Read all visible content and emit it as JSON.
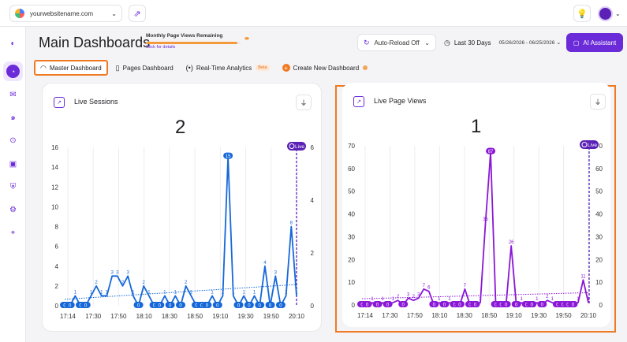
{
  "topbar": {
    "site": "yourwebsitename.com",
    "site_chevron": "⌄",
    "external_icon": "external-link-icon",
    "bulb_icon": "lightbulb-icon",
    "avatar_color": "#5b21b6"
  },
  "rail": {
    "icons": [
      "toggle-icon",
      "dashboard-icon",
      "inbox-icon",
      "spiral-icon",
      "focus-icon",
      "chat-icon",
      "shield-icon",
      "gear-icon",
      "pin-icon"
    ]
  },
  "header": {
    "title": "Main Dashboards",
    "quota_label": "Monthly Page Views Remaining",
    "quota_link": "Click for details",
    "quota_fraction": 0.97,
    "reload_label": "Auto-Reload Off",
    "range_label": "Last 30 Days",
    "range_dates": "05/26/2026 - 06/25/2026",
    "ai_label": "AI Assistant",
    "accent": "#6b2bd9"
  },
  "tabs": [
    {
      "label": "Master Dashboard",
      "active": true
    },
    {
      "label": "Pages Dashboard",
      "active": false
    },
    {
      "label": "Real-Time Analytics",
      "active": false,
      "badge": "Beta"
    },
    {
      "label": "Create New Dashboard",
      "active": false
    }
  ],
  "cards": {
    "sessions": {
      "title": "Live Sessions",
      "value": "2"
    },
    "pageviews": {
      "title": "Live Page Views",
      "value": "1"
    }
  },
  "chart_data": [
    {
      "type": "line",
      "title": "Live Sessions",
      "color": "#1668d8",
      "x_ticks": [
        "17:14",
        "17:30",
        "17:50",
        "18:10",
        "18:30",
        "18:50",
        "19:10",
        "19:30",
        "19:50",
        "20:10"
      ],
      "ylim": [
        0,
        16
      ],
      "y_ticks": [
        0,
        2,
        4,
        6,
        8,
        10,
        12,
        14,
        16
      ],
      "right_y_ticks": [
        0,
        2,
        4,
        6
      ],
      "live_label": "Live",
      "values": [
        0,
        0,
        1,
        0,
        0,
        1,
        2,
        1,
        1,
        3,
        3,
        2,
        3,
        1,
        0,
        2,
        1,
        0,
        0,
        1,
        0,
        1,
        0,
        2,
        1,
        0,
        0,
        0,
        1,
        0,
        1,
        15,
        1,
        0,
        1,
        0,
        1,
        0,
        4,
        0,
        3,
        0,
        1,
        8,
        1
      ],
      "labels": [
        "0",
        "0",
        "1",
        "0",
        "0",
        "1",
        "2",
        "1",
        "1",
        "3",
        "3",
        "2",
        "3",
        "1",
        "0",
        "2",
        "1",
        "0",
        "0",
        "1",
        "0",
        "1",
        "0",
        "2",
        "1",
        "0",
        "0",
        "0",
        "1",
        "0",
        "1",
        "15",
        "1",
        "0",
        "1",
        "0",
        "1",
        "0",
        "4",
        "0",
        "3",
        "0",
        "1",
        "8",
        "1"
      ]
    },
    {
      "type": "line",
      "title": "Live Page Views",
      "color": "#8a17d6",
      "x_ticks": [
        "17:14",
        "17:30",
        "17:50",
        "18:10",
        "18:30",
        "18:50",
        "19:10",
        "19:30",
        "19:50",
        "20:10"
      ],
      "ylim": [
        0,
        70
      ],
      "y_ticks": [
        0,
        10,
        20,
        30,
        40,
        50,
        60,
        70
      ],
      "right_y_ticks": [
        0,
        10,
        20,
        30,
        40,
        50,
        60,
        70
      ],
      "live_label": "Live",
      "values": [
        0,
        0,
        1,
        0,
        1,
        0,
        1,
        2,
        0,
        3,
        2,
        3,
        7,
        6,
        0,
        1,
        0,
        1,
        0,
        0,
        7,
        0,
        0,
        1,
        36,
        67,
        0,
        0,
        0,
        26,
        0,
        1,
        0,
        0,
        1,
        0,
        2,
        1,
        0,
        0,
        0,
        0,
        1,
        11,
        1
      ],
      "labels": [
        "0",
        "0",
        "1",
        "0",
        "1",
        "0",
        "1",
        "2",
        "0",
        "3",
        "2",
        "3",
        "7",
        "6",
        "0",
        "1",
        "0",
        "1",
        "0",
        "0",
        "7",
        "0",
        "0",
        "1",
        "36",
        "67",
        "0",
        "0",
        "0",
        "26",
        "0",
        "1",
        "0",
        "0",
        "1",
        "0",
        "2",
        "1",
        "0",
        "0",
        "0",
        "0",
        "1",
        "11",
        "1"
      ]
    }
  ]
}
